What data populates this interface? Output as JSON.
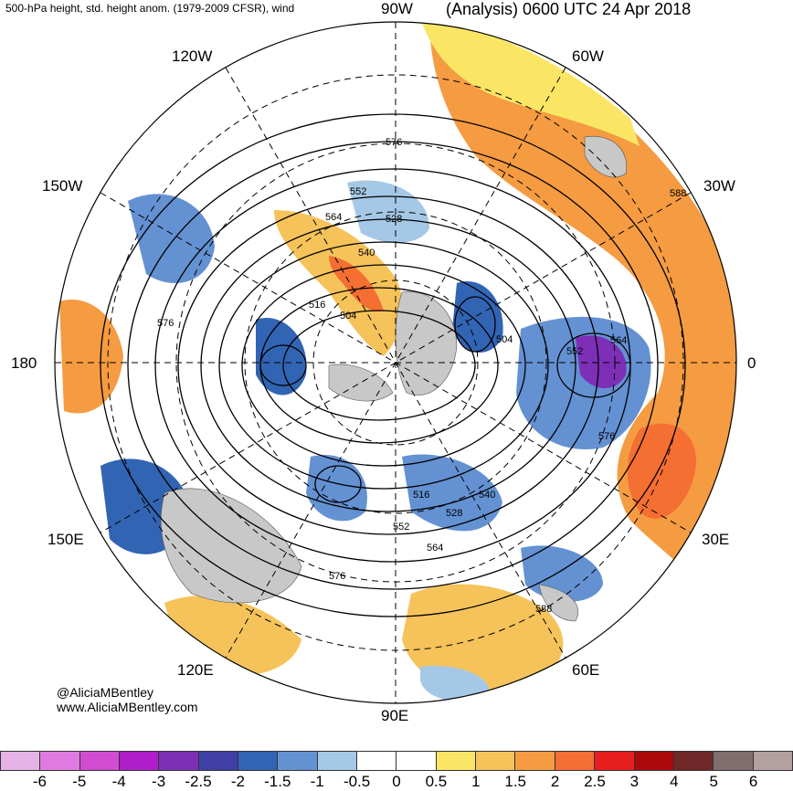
{
  "title": {
    "left": "500-hPa height, std. height anom. (1979-2009 CFSR), wind",
    "right": "(Analysis) 0600 UTC 24 Apr 2018"
  },
  "longitude_labels": {
    "n90w": "90W",
    "n60w": "60W",
    "n120w": "120W",
    "n30w": "30W",
    "n150w": "150W",
    "n180": "180",
    "n0": "0",
    "n150e": "150E",
    "n30e": "30E",
    "n120e": "120E",
    "n60e": "60E",
    "n90e": "90E"
  },
  "contour_labels": [
    "576",
    "552",
    "528",
    "564",
    "540",
    "516",
    "504",
    "504",
    "552",
    "564",
    "576",
    "588",
    "576",
    "516",
    "528",
    "540",
    "552",
    "564",
    "576",
    "588"
  ],
  "credits": {
    "line1": "@AliciaMBentley",
    "line2": "www.AliciaMBentley.com"
  },
  "colorbar": {
    "colors": [
      "#e6b3e6",
      "#e07ae0",
      "#d24cd2",
      "#b01ecb",
      "#7d2fb6",
      "#3f3fa6",
      "#3264b4",
      "#6491d2",
      "#a5c8e6",
      "#ffffff",
      "#ffffff",
      "#fae664",
      "#f5c35a",
      "#f59b41",
      "#f56e32",
      "#e61e1e",
      "#aa0a0a",
      "#6e2828",
      "#826e6e",
      "#b4a0a0"
    ],
    "ticks": [
      "-6",
      "-5",
      "-4",
      "-3",
      "-2.5",
      "-2",
      "-1.5",
      "-1",
      "-0.5",
      "0",
      "0.5",
      "1",
      "1.5",
      "2",
      "2.5",
      "3",
      "4",
      "5",
      "6"
    ]
  }
}
